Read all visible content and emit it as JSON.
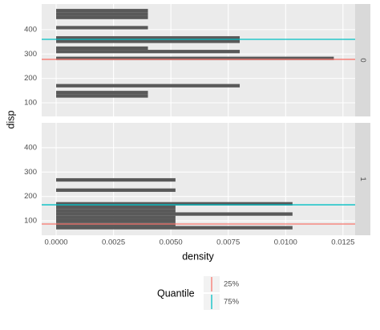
{
  "x_label": "density",
  "y_label": "disp",
  "legend": {
    "title": "Quantile",
    "items": [
      {
        "label": "25%",
        "color": "#f8766d"
      },
      {
        "label": "75%",
        "color": "#00bfc4"
      }
    ]
  },
  "chart_data": [
    {
      "type": "histogram",
      "orientation": "horizontal",
      "facet": "0",
      "color": "#595959",
      "bins": [
        65,
        79,
        93,
        107,
        121,
        135,
        149,
        163,
        177,
        191,
        205,
        219,
        233,
        247,
        261,
        275,
        289,
        303,
        317,
        331,
        345,
        359,
        373,
        387,
        401,
        415,
        429,
        443,
        457,
        471,
        485
      ],
      "values": [
        0,
        0,
        0,
        0,
        0.004,
        0.004,
        0,
        0.008,
        0,
        0,
        0,
        0,
        0,
        0,
        0,
        0.0121,
        0,
        0.008,
        0.004,
        0,
        0.008,
        0.008,
        0,
        0,
        0.004,
        0,
        0,
        0.004,
        0.004,
        0.004
      ],
      "quantiles": [
        278,
        360
      ],
      "xlim": [
        -0.00063,
        0.01303
      ],
      "xticks": [
        {
          "value": 0,
          "label": "0.0000"
        },
        0.0025,
        {
          "value": 0.005,
          "label": "0.0050"
        },
        0.0075,
        {
          "value": 0.01,
          "label": "0.0100"
        },
        0.0125
      ],
      "ylim": [
        44,
        505
      ],
      "yticks": [
        100,
        200,
        300,
        400
      ],
      "grid": true
    },
    {
      "type": "histogram",
      "orientation": "horizontal",
      "facet": "1",
      "color": "#595959",
      "bins": [
        65,
        79,
        93,
        107,
        121,
        135,
        149,
        163,
        177,
        191,
        205,
        219,
        233,
        247,
        261,
        275,
        289,
        303,
        317,
        331,
        345,
        359,
        373,
        387,
        401,
        415,
        429,
        443,
        457,
        471,
        485
      ],
      "values": [
        0.0103,
        0.0052,
        0.0052,
        0.0052,
        0.0103,
        0.0052,
        0.0052,
        0.0103,
        0,
        0,
        0,
        0.0052,
        0,
        0,
        0.0052,
        0,
        0,
        0,
        0,
        0,
        0,
        0,
        0,
        0,
        0,
        0,
        0,
        0,
        0,
        0
      ],
      "quantiles": [
        87,
        166
      ],
      "xlim": [
        -0.00063,
        0.01303
      ],
      "xticks": [
        {
          "value": 0,
          "label": "0.0000"
        },
        0.0025,
        {
          "value": 0.005,
          "label": "0.0050"
        },
        0.0075,
        {
          "value": 0.01,
          "label": "0.0100"
        },
        0.0125
      ],
      "ylim": [
        41,
        502
      ],
      "yticks": [
        100,
        200,
        300,
        400
      ],
      "grid": true
    }
  ]
}
